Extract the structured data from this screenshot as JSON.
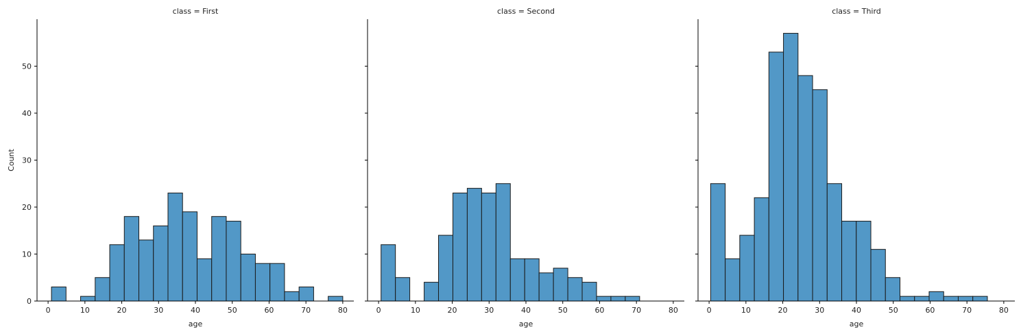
{
  "chart_data": [
    {
      "type": "bar",
      "title": "class = First",
      "xlabel": "age",
      "ylabel": "Count",
      "xlim": [
        -3,
        83
      ],
      "ylim": [
        0,
        60
      ],
      "bin_start": 0.92,
      "bin_width": 3.954,
      "values": [
        3,
        0,
        1,
        5,
        12,
        18,
        13,
        16,
        23,
        19,
        9,
        18,
        17,
        10,
        8,
        8,
        2,
        3,
        0,
        1
      ],
      "xticks": [
        0,
        10,
        20,
        30,
        40,
        50,
        60,
        70,
        80
      ],
      "yticks": [
        0,
        10,
        20,
        30,
        40,
        50
      ]
    },
    {
      "type": "bar",
      "title": "class = Second",
      "xlabel": "age",
      "ylabel": "",
      "xlim": [
        -3,
        83
      ],
      "ylim": [
        0,
        60
      ],
      "bin_start": 0.67,
      "bin_width": 3.9,
      "values": [
        12,
        5,
        0,
        4,
        14,
        23,
        24,
        23,
        25,
        9,
        9,
        6,
        7,
        5,
        4,
        1,
        1,
        1,
        0,
        0
      ],
      "xticks": [
        0,
        10,
        20,
        30,
        40,
        50,
        60,
        70,
        80
      ],
      "yticks": [
        0,
        10,
        20,
        30,
        40,
        50
      ]
    },
    {
      "type": "bar",
      "title": "class = Third",
      "xlabel": "age",
      "ylabel": "",
      "xlim": [
        -3,
        83
      ],
      "ylim": [
        0,
        60
      ],
      "bin_start": 0.42,
      "bin_width": 3.954,
      "values": [
        25,
        9,
        14,
        22,
        53,
        57,
        48,
        45,
        25,
        17,
        17,
        11,
        5,
        1,
        1,
        2,
        1,
        1,
        1,
        0
      ],
      "xticks": [
        0,
        10,
        20,
        30,
        40,
        50,
        60,
        70,
        80
      ],
      "yticks": [
        0,
        10,
        20,
        30,
        40,
        50
      ]
    }
  ]
}
